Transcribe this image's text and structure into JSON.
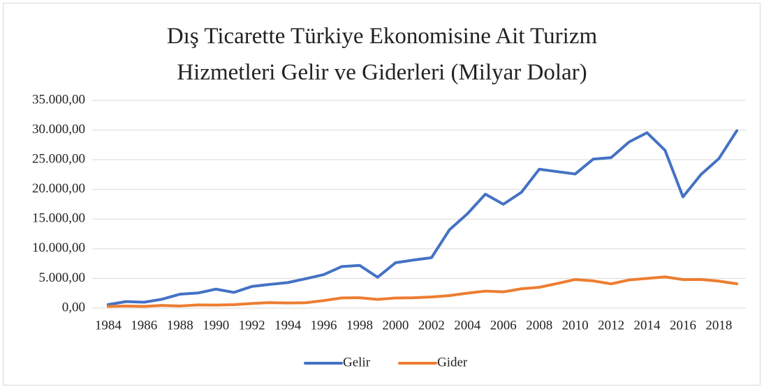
{
  "chart_data": {
    "type": "line",
    "title": "Dış Ticarette Türkiye Ekonomisine Ait Turizm Hizmetleri Gelir ve Giderleri (Milyar Dolar)",
    "categories": [
      "1984",
      null,
      "1986",
      null,
      "1988",
      null,
      "1990",
      null,
      "1992",
      null,
      "1994",
      null,
      "1996",
      null,
      "1998",
      null,
      "2000",
      null,
      "2002",
      null,
      "2004",
      null,
      "2006",
      null,
      "2008",
      null,
      "2010",
      null,
      "2012",
      null,
      "2014",
      null,
      "2016",
      null,
      "2018",
      null
    ],
    "series": [
      {
        "name": "Gelir",
        "color": "#4472c4",
        "values": [
          600,
          1100,
          1000,
          1500,
          2350,
          2550,
          3200,
          2650,
          3650,
          4000,
          4300,
          4950,
          5650,
          7000,
          7200,
          5200,
          7650,
          8100,
          8500,
          13200,
          15900,
          19200,
          17500,
          19500,
          23400,
          23000,
          22600,
          25100,
          25350,
          28000,
          29550,
          26600,
          18750,
          22500,
          25200,
          29900
        ]
      },
      {
        "name": "Gider",
        "color": "#ed7d31",
        "values": [
          300,
          350,
          300,
          450,
          360,
          550,
          520,
          590,
          780,
          930,
          870,
          910,
          1270,
          1720,
          1750,
          1470,
          1710,
          1740,
          1880,
          2110,
          2520,
          2870,
          2740,
          3260,
          3510,
          4150,
          4820,
          4590,
          4090,
          4750,
          5000,
          5260,
          4820,
          4830,
          4550,
          4100
        ]
      }
    ],
    "ylim": [
      0,
      35000
    ],
    "yticks": [
      {
        "value": 0,
        "label": "0,00"
      },
      {
        "value": 5000,
        "label": "5.000,00"
      },
      {
        "value": 10000,
        "label": "10.000,00"
      },
      {
        "value": 15000,
        "label": "15.000,00"
      },
      {
        "value": 20000,
        "label": "20.000,00"
      },
      {
        "value": 25000,
        "label": "25.000,00"
      },
      {
        "value": 30000,
        "label": "30.000,00"
      },
      {
        "value": 35000,
        "label": "35.000,00"
      }
    ],
    "grid": true,
    "legend": "bottom"
  }
}
